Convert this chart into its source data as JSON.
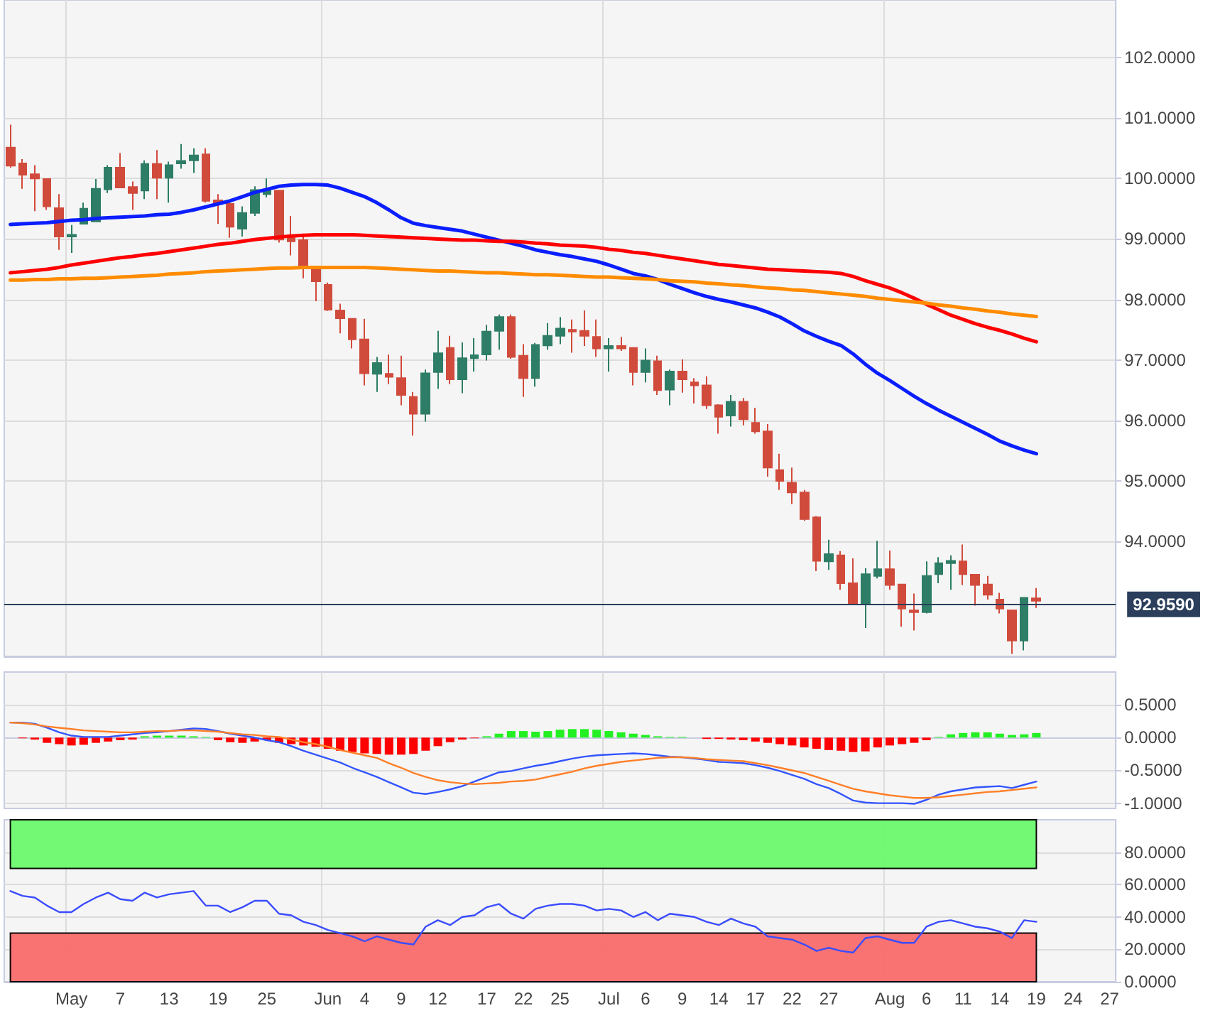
{
  "chart_data": [
    {
      "type": "candlestick",
      "categories": [
        null,
        null,
        null,
        null,
        null,
        null,
        null,
        null,
        null,
        null,
        null,
        null,
        null,
        null,
        null,
        null,
        null,
        null,
        null,
        null,
        null,
        null,
        null,
        null,
        null,
        null,
        null,
        null,
        null,
        null,
        null,
        null,
        null,
        null,
        null,
        null,
        null,
        null,
        null,
        null,
        null,
        null,
        null,
        null,
        null,
        null,
        null,
        null,
        null,
        null,
        null,
        null,
        null,
        null,
        null,
        null,
        null,
        null,
        null,
        null,
        null,
        null,
        null,
        null,
        null,
        null,
        null,
        null,
        null,
        null,
        null,
        null,
        null,
        null,
        null,
        null,
        null,
        null,
        null,
        null,
        null,
        null,
        null,
        null,
        null,
        null,
        null,
        null,
        null,
        null,
        null
      ],
      "ohlc": [
        [
          100.51,
          100.89,
          100.18,
          100.21
        ],
        [
          100.25,
          100.32,
          99.83,
          100.06
        ],
        [
          100.07,
          100.22,
          99.46,
          100.0
        ],
        [
          99.99,
          100.0,
          99.48,
          99.54
        ],
        [
          99.51,
          99.74,
          98.82,
          99.04
        ],
        [
          99.04,
          99.23,
          98.77,
          99.07
        ],
        [
          99.25,
          99.6,
          99.25,
          99.5
        ],
        [
          99.29,
          99.99,
          99.29,
          99.83
        ],
        [
          99.82,
          100.22,
          99.76,
          100.18
        ],
        [
          100.18,
          100.42,
          99.85,
          99.85
        ],
        [
          99.86,
          99.95,
          99.48,
          99.76
        ],
        [
          99.8,
          100.3,
          99.66,
          100.24
        ],
        [
          100.24,
          100.47,
          99.66,
          100.01
        ],
        [
          100.01,
          100.28,
          99.6,
          100.22
        ],
        [
          100.25,
          100.57,
          100.16,
          100.29
        ],
        [
          100.3,
          100.5,
          100.09,
          100.38
        ],
        [
          100.4,
          100.5,
          99.6,
          99.63
        ],
        [
          99.64,
          99.74,
          99.25,
          99.58
        ],
        [
          99.58,
          99.6,
          99.02,
          99.2
        ],
        [
          99.17,
          99.54,
          99.04,
          99.43
        ],
        [
          99.43,
          99.87,
          99.38,
          99.81
        ],
        [
          99.74,
          100.0,
          99.69,
          99.8
        ],
        [
          99.8,
          99.8,
          98.94,
          98.99
        ],
        [
          99.03,
          99.38,
          98.73,
          98.96
        ],
        [
          98.98,
          99.09,
          98.35,
          98.51
        ],
        [
          98.49,
          98.55,
          97.97,
          98.3
        ],
        [
          98.24,
          98.28,
          97.81,
          97.83
        ],
        [
          97.82,
          97.93,
          97.44,
          97.69
        ],
        [
          97.68,
          97.68,
          97.19,
          97.34
        ],
        [
          97.34,
          97.68,
          96.58,
          96.78
        ],
        [
          96.77,
          97.05,
          96.47,
          96.95
        ],
        [
          96.77,
          97.09,
          96.6,
          96.72
        ],
        [
          96.7,
          97.07,
          96.25,
          96.42
        ],
        [
          96.39,
          96.47,
          95.75,
          96.11
        ],
        [
          96.11,
          96.84,
          95.98,
          96.78
        ],
        [
          96.8,
          97.48,
          96.52,
          97.11
        ],
        [
          97.2,
          97.4,
          96.6,
          96.68
        ],
        [
          96.68,
          97.29,
          96.45,
          97.03
        ],
        [
          97.03,
          97.36,
          96.81,
          97.08
        ],
        [
          97.09,
          97.58,
          96.99,
          97.47
        ],
        [
          97.48,
          97.75,
          97.17,
          97.71
        ],
        [
          97.71,
          97.75,
          97.02,
          97.05
        ],
        [
          97.07,
          97.26,
          96.39,
          96.7
        ],
        [
          96.7,
          97.28,
          96.56,
          97.25
        ],
        [
          97.24,
          97.61,
          97.17,
          97.4
        ],
        [
          97.4,
          97.71,
          97.26,
          97.52
        ],
        [
          97.5,
          97.67,
          97.12,
          97.47
        ],
        [
          97.48,
          97.82,
          97.23,
          97.4
        ],
        [
          97.38,
          97.67,
          97.05,
          97.19
        ],
        [
          97.19,
          97.36,
          96.81,
          97.23
        ],
        [
          97.23,
          97.38,
          97.15,
          97.19
        ],
        [
          97.2,
          97.2,
          96.58,
          96.8
        ],
        [
          96.8,
          97.19,
          96.63,
          96.99
        ],
        [
          96.98,
          97.07,
          96.42,
          96.5
        ],
        [
          96.51,
          96.84,
          96.25,
          96.81
        ],
        [
          96.81,
          97.01,
          96.46,
          96.68
        ],
        [
          96.63,
          96.7,
          96.28,
          96.58
        ],
        [
          96.58,
          96.73,
          96.19,
          96.25
        ],
        [
          96.25,
          96.27,
          95.78,
          96.06
        ],
        [
          96.08,
          96.42,
          95.9,
          96.31
        ],
        [
          96.31,
          96.37,
          95.92,
          96.02
        ],
        [
          95.96,
          96.21,
          95.78,
          95.82
        ],
        [
          95.82,
          95.94,
          95.07,
          95.22
        ],
        [
          95.18,
          95.45,
          94.85,
          95.0
        ],
        [
          94.97,
          95.22,
          94.62,
          94.81
        ],
        [
          94.81,
          94.85,
          94.34,
          94.37
        ],
        [
          94.4,
          94.42,
          93.51,
          93.68
        ],
        [
          93.67,
          94.03,
          93.53,
          93.79
        ],
        [
          93.77,
          93.84,
          93.2,
          93.31
        ],
        [
          93.31,
          93.72,
          92.98,
          92.98
        ],
        [
          92.98,
          93.56,
          92.57,
          93.46
        ],
        [
          93.43,
          94.01,
          93.39,
          93.54
        ],
        [
          93.54,
          93.85,
          93.2,
          93.28
        ],
        [
          93.29,
          93.29,
          92.59,
          92.89
        ],
        [
          92.86,
          93.14,
          92.53,
          92.83
        ],
        [
          92.83,
          93.67,
          92.81,
          93.43
        ],
        [
          93.46,
          93.74,
          93.31,
          93.64
        ],
        [
          93.64,
          93.77,
          93.2,
          93.68
        ],
        [
          93.67,
          93.95,
          93.28,
          93.46
        ],
        [
          93.45,
          93.45,
          92.94,
          93.28
        ],
        [
          93.29,
          93.43,
          93.04,
          93.12
        ],
        [
          93.04,
          93.15,
          92.81,
          92.89
        ],
        [
          92.86,
          92.86,
          92.14,
          92.36
        ],
        [
          92.36,
          93.07,
          92.2,
          93.07
        ],
        [
          93.06,
          93.23,
          92.9,
          93.02
        ],
        null,
        null,
        null,
        null,
        null,
        null
      ],
      "series": [
        {
          "type": "line",
          "color": "#0a1eff",
          "values": [
            99.24,
            99.25,
            99.26,
            99.27,
            99.29,
            99.31,
            99.32,
            99.34,
            99.35,
            99.36,
            99.37,
            99.38,
            99.4,
            99.41,
            99.44,
            99.48,
            99.53,
            99.58,
            99.63,
            99.7,
            99.77,
            99.82,
            99.87,
            99.89,
            99.9,
            99.9,
            99.89,
            99.84,
            99.77,
            99.7,
            99.6,
            99.48,
            99.35,
            99.26,
            99.22,
            99.19,
            99.16,
            99.13,
            99.08,
            99.03,
            98.98,
            98.93,
            98.88,
            98.82,
            98.78,
            98.74,
            98.71,
            98.67,
            98.63,
            98.57,
            98.5,
            98.43,
            98.39,
            98.33,
            98.25,
            98.18,
            98.11,
            98.05,
            98.0,
            97.96,
            97.91,
            97.86,
            97.79,
            97.71,
            97.6,
            97.48,
            97.39,
            97.31,
            97.24,
            97.1,
            96.93,
            96.78,
            96.66,
            96.53,
            96.4,
            96.28,
            96.17,
            96.07,
            95.97,
            95.87,
            95.77,
            95.66,
            95.58,
            95.51,
            95.45,
            null,
            null,
            null,
            null,
            null,
            null
          ]
        },
        {
          "type": "line",
          "color": "#ff0000",
          "values": [
            98.44,
            98.46,
            98.48,
            98.5,
            98.53,
            98.57,
            98.6,
            98.63,
            98.66,
            98.69,
            98.71,
            98.74,
            98.76,
            98.79,
            98.82,
            98.85,
            98.88,
            98.91,
            98.93,
            98.96,
            98.99,
            99.01,
            99.03,
            99.05,
            99.06,
            99.07,
            99.07,
            99.07,
            99.07,
            99.06,
            99.05,
            99.04,
            99.03,
            99.02,
            99.01,
            99.0,
            98.99,
            98.98,
            98.98,
            98.97,
            98.96,
            98.96,
            98.95,
            98.93,
            98.92,
            98.9,
            98.89,
            98.88,
            98.86,
            98.83,
            98.81,
            98.78,
            98.76,
            98.73,
            98.7,
            98.67,
            98.64,
            98.61,
            98.58,
            98.56,
            98.54,
            98.52,
            98.5,
            98.49,
            98.48,
            98.47,
            98.46,
            98.45,
            98.43,
            98.38,
            98.31,
            98.25,
            98.19,
            98.11,
            98.02,
            97.92,
            97.83,
            97.74,
            97.67,
            97.6,
            97.54,
            97.49,
            97.43,
            97.36,
            97.3,
            null,
            null,
            null,
            null,
            null,
            null
          ]
        },
        {
          "type": "line",
          "color": "#ff8c00",
          "values": [
            98.32,
            98.32,
            98.33,
            98.33,
            98.34,
            98.34,
            98.35,
            98.35,
            98.36,
            98.37,
            98.38,
            98.39,
            98.4,
            98.42,
            98.43,
            98.44,
            98.46,
            98.47,
            98.48,
            98.49,
            98.5,
            98.51,
            98.52,
            98.52,
            98.53,
            98.53,
            98.53,
            98.53,
            98.53,
            98.53,
            98.52,
            98.51,
            98.5,
            98.49,
            98.48,
            98.47,
            98.47,
            98.46,
            98.45,
            98.44,
            98.44,
            98.43,
            98.42,
            98.41,
            98.41,
            98.4,
            98.39,
            98.38,
            98.37,
            98.37,
            98.36,
            98.35,
            98.34,
            98.33,
            98.31,
            98.3,
            98.29,
            98.27,
            98.26,
            98.24,
            98.23,
            98.21,
            98.19,
            98.18,
            98.16,
            98.15,
            98.13,
            98.11,
            98.09,
            98.07,
            98.05,
            98.02,
            98.0,
            97.98,
            97.96,
            97.94,
            97.91,
            97.89,
            97.86,
            97.84,
            97.81,
            97.79,
            97.76,
            97.74,
            97.72,
            null,
            null,
            null,
            null,
            null,
            null
          ]
        }
      ],
      "ylim": [
        92.1,
        102.95
      ],
      "yticks": [
        {
          "value": 94,
          "label": "94.0000"
        },
        {
          "value": 95,
          "label": "95.0000"
        },
        {
          "value": 96,
          "label": "96.0000"
        },
        {
          "value": 97,
          "label": "97.0000"
        },
        {
          "value": 98,
          "label": "98.0000"
        },
        {
          "value": 99,
          "label": "99.0000"
        },
        {
          "value": 100,
          "label": "100.0000"
        },
        {
          "value": 101,
          "label": "101.0000"
        },
        {
          "value": 102,
          "label": "102.0000"
        }
      ],
      "ref_lines": [
        {
          "axis": "y",
          "value": 92.959,
          "label": "92.9590",
          "color": "#2b3f5c"
        }
      ],
      "grid": true,
      "tick_labels": "y"
    },
    {
      "type": "bar",
      "categories": [
        null,
        null,
        null,
        null,
        null,
        null,
        null,
        null,
        null,
        null,
        null,
        null,
        null,
        null,
        null,
        null,
        null,
        null,
        null,
        null,
        null,
        null,
        null,
        null,
        null,
        null,
        null,
        null,
        null,
        null,
        null,
        null,
        null,
        null,
        null,
        null,
        null,
        null,
        null,
        null,
        null,
        null,
        null,
        null,
        null,
        null,
        null,
        null,
        null,
        null,
        null,
        null,
        null,
        null,
        null,
        null,
        null,
        null,
        null,
        null,
        null,
        null,
        null,
        null,
        null,
        null,
        null,
        null,
        null,
        null,
        null,
        null,
        null,
        null,
        null,
        null,
        null,
        null,
        null,
        null,
        null,
        null,
        null,
        null,
        null,
        null,
        null,
        null,
        null,
        null,
        null
      ],
      "series": [
        {
          "type": "bar",
          "color": "#22f022",
          "values": [
            null,
            null,
            null,
            null,
            null,
            null,
            null,
            null,
            null,
            null,
            null,
            0.02,
            0.03,
            0.03,
            0.03,
            0.02,
            0.01,
            null,
            null,
            null,
            null,
            null,
            null,
            null,
            null,
            null,
            null,
            null,
            null,
            null,
            null,
            null,
            null,
            null,
            null,
            null,
            null,
            null,
            null,
            0.02,
            0.06,
            0.1,
            0.1,
            0.09,
            0.1,
            0.12,
            0.13,
            0.13,
            0.12,
            0.1,
            0.08,
            0.06,
            0.04,
            0.02,
            0.01,
            0.01,
            null,
            null,
            null,
            null,
            null,
            null,
            null,
            null,
            null,
            null,
            null,
            null,
            null,
            null,
            null,
            null,
            null,
            null,
            null,
            null,
            0.01,
            0.05,
            0.07,
            0.08,
            0.08,
            0.06,
            0.04,
            0.05,
            0.07,
            null,
            null,
            null,
            null,
            null,
            null
          ]
        },
        {
          "type": "bar",
          "color": "#ff0000",
          "values": [
            null,
            -0.01,
            -0.03,
            -0.08,
            -0.1,
            -0.12,
            -0.11,
            -0.08,
            -0.06,
            -0.04,
            -0.03,
            null,
            null,
            null,
            null,
            null,
            null,
            -0.04,
            -0.07,
            -0.08,
            -0.06,
            -0.04,
            -0.08,
            -0.1,
            -0.12,
            -0.14,
            -0.17,
            -0.2,
            -0.22,
            -0.24,
            -0.25,
            -0.26,
            -0.26,
            -0.25,
            -0.2,
            -0.13,
            -0.07,
            -0.03,
            -0.01,
            null,
            null,
            null,
            null,
            null,
            null,
            null,
            null,
            null,
            null,
            null,
            null,
            null,
            null,
            null,
            null,
            null,
            null,
            -0.02,
            -0.02,
            -0.03,
            -0.04,
            -0.06,
            -0.08,
            -0.1,
            -0.12,
            -0.15,
            -0.17,
            -0.19,
            -0.2,
            -0.22,
            -0.21,
            -0.15,
            -0.12,
            -0.1,
            -0.08,
            -0.04,
            null,
            null,
            null,
            null,
            null,
            null,
            null,
            null,
            null,
            null,
            null,
            null,
            null,
            null,
            null
          ]
        },
        {
          "type": "line",
          "color": "#3355ff",
          "values": [
            0.23,
            0.23,
            0.21,
            0.15,
            0.08,
            0.03,
            0.01,
            0.01,
            0.01,
            0.03,
            0.05,
            0.07,
            0.08,
            0.1,
            0.12,
            0.14,
            0.13,
            0.1,
            0.06,
            0.03,
            0.0,
            -0.04,
            -0.07,
            -0.13,
            -0.2,
            -0.26,
            -0.32,
            -0.38,
            -0.46,
            -0.53,
            -0.6,
            -0.68,
            -0.76,
            -0.84,
            -0.86,
            -0.83,
            -0.79,
            -0.74,
            -0.67,
            -0.6,
            -0.53,
            -0.51,
            -0.47,
            -0.43,
            -0.4,
            -0.36,
            -0.32,
            -0.29,
            -0.27,
            -0.26,
            -0.25,
            -0.24,
            -0.25,
            -0.27,
            -0.29,
            -0.3,
            -0.32,
            -0.34,
            -0.37,
            -0.38,
            -0.39,
            -0.42,
            -0.46,
            -0.51,
            -0.57,
            -0.63,
            -0.71,
            -0.77,
            -0.86,
            -0.96,
            -0.99,
            -1.0,
            -1.0,
            -1.0,
            -1.01,
            -0.95,
            -0.87,
            -0.82,
            -0.79,
            -0.76,
            -0.75,
            -0.74,
            -0.77,
            -0.72,
            -0.67,
            null,
            null,
            null,
            null,
            null,
            null
          ]
        },
        {
          "type": "line",
          "color": "#ff7f27",
          "values": [
            0.23,
            0.22,
            0.2,
            0.17,
            0.15,
            0.13,
            0.11,
            0.1,
            0.09,
            0.08,
            0.08,
            0.09,
            0.1,
            0.1,
            0.11,
            0.11,
            0.1,
            0.09,
            0.07,
            0.05,
            0.04,
            0.02,
            0.01,
            -0.03,
            -0.07,
            -0.1,
            -0.14,
            -0.19,
            -0.23,
            -0.27,
            -0.31,
            -0.39,
            -0.46,
            -0.54,
            -0.6,
            -0.65,
            -0.68,
            -0.7,
            -0.71,
            -0.7,
            -0.69,
            -0.67,
            -0.66,
            -0.64,
            -0.6,
            -0.56,
            -0.52,
            -0.47,
            -0.43,
            -0.4,
            -0.37,
            -0.35,
            -0.33,
            -0.31,
            -0.3,
            -0.3,
            -0.31,
            -0.33,
            -0.34,
            -0.35,
            -0.36,
            -0.39,
            -0.42,
            -0.46,
            -0.5,
            -0.54,
            -0.6,
            -0.66,
            -0.72,
            -0.78,
            -0.82,
            -0.85,
            -0.88,
            -0.9,
            -0.92,
            -0.92,
            -0.91,
            -0.89,
            -0.87,
            -0.85,
            -0.83,
            -0.82,
            -0.8,
            -0.78,
            -0.76,
            null,
            null,
            null,
            null,
            null,
            null
          ]
        }
      ],
      "ylim": [
        -1.08,
        1.0
      ],
      "yticks": [
        {
          "value": -1,
          "label": "-1.0000"
        },
        {
          "value": -0.5,
          "label": "-0.5000"
        },
        {
          "value": 0,
          "label": "0.0000"
        },
        {
          "value": 0.5,
          "label": "0.5000"
        }
      ],
      "grid": true,
      "tick_labels": "y"
    },
    {
      "type": "line",
      "categories": [
        null,
        null,
        null,
        null,
        null,
        "May",
        null,
        null,
        null,
        "7",
        null,
        null,
        null,
        "13",
        null,
        null,
        null,
        "19",
        null,
        null,
        null,
        "25",
        null,
        null,
        null,
        null,
        "Jun",
        null,
        null,
        "4",
        null,
        null,
        "9",
        null,
        null,
        "12",
        null,
        null,
        null,
        "17",
        null,
        null,
        "22",
        null,
        null,
        "25",
        null,
        null,
        null,
        "Jul",
        null,
        null,
        "6",
        null,
        null,
        "9",
        null,
        null,
        "14",
        null,
        null,
        "17",
        null,
        null,
        "22",
        null,
        null,
        "27",
        null,
        null,
        null,
        null,
        "Aug",
        null,
        null,
        "6",
        null,
        null,
        "11",
        null,
        null,
        "14",
        null,
        null,
        "19",
        null,
        null,
        "24",
        null,
        null,
        "27"
      ],
      "color": "#3a4cff",
      "values": [
        56,
        53,
        52,
        47,
        43,
        43,
        48,
        52,
        55,
        51,
        50,
        55,
        52,
        54,
        55,
        56,
        47,
        47,
        43,
        46,
        50,
        50,
        42,
        41,
        37,
        35,
        32,
        30,
        28,
        25,
        28,
        26,
        24,
        23,
        34,
        38,
        35,
        40,
        41,
        46,
        48,
        42,
        39,
        45,
        47,
        48,
        48,
        47,
        44,
        45,
        44,
        40,
        43,
        38,
        42,
        41,
        40,
        37,
        35,
        39,
        36,
        34,
        28,
        27,
        26,
        23,
        19,
        21,
        19,
        18,
        27,
        28,
        26,
        24,
        24,
        34,
        37,
        38,
        36,
        34,
        33,
        31,
        27,
        38,
        37,
        null,
        null,
        null,
        null,
        null,
        null
      ],
      "ylim": [
        0,
        100
      ],
      "yticks": [
        {
          "value": 0,
          "label": "0.0000"
        },
        {
          "value": 20,
          "label": "20.0000"
        },
        {
          "value": 40,
          "label": "40.0000"
        },
        {
          "value": 60,
          "label": "60.0000"
        },
        {
          "value": 80,
          "label": "80.0000"
        }
      ],
      "bands": [
        {
          "axis": "y",
          "from": 70,
          "to": 100,
          "color": "#6cf96c"
        },
        {
          "axis": "y",
          "from": 0,
          "to": 30,
          "color": "#f96c6c"
        }
      ],
      "grid": true
    }
  ]
}
